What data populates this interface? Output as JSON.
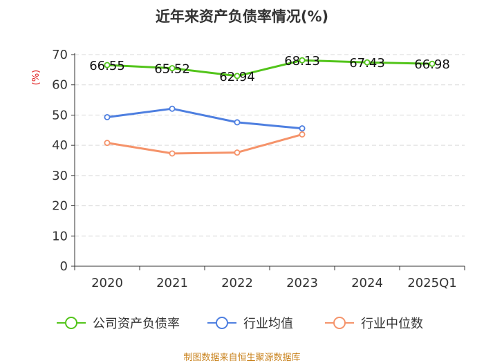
{
  "chart_data": {
    "type": "line",
    "title": "近年来资产负债率情况(%)",
    "ylabel": "(%)",
    "ylim": [
      0,
      70
    ],
    "yticks": [
      0,
      10,
      20,
      30,
      40,
      50,
      60,
      70
    ],
    "categories": [
      "2020",
      "2021",
      "2022",
      "2023",
      "2024",
      "2025Q1"
    ],
    "grid": true,
    "legend_position": "bottom",
    "series": [
      {
        "name": "公司资产负债率",
        "color": "#52c41a",
        "values": [
          66.55,
          65.52,
          62.94,
          68.13,
          67.43,
          66.98
        ],
        "labels": [
          "66.55",
          "65.52",
          "62.94",
          "68.13",
          "67.43",
          "66.98"
        ]
      },
      {
        "name": "行业均值",
        "color": "#4e7fe0",
        "values": [
          49.3,
          52.1,
          47.6,
          45.6,
          null,
          null
        ]
      },
      {
        "name": "行业中位数",
        "color": "#f5936a",
        "values": [
          40.8,
          37.3,
          37.6,
          43.6,
          null,
          null
        ]
      }
    ],
    "source": "制图数据来自恒生聚源数据库"
  }
}
